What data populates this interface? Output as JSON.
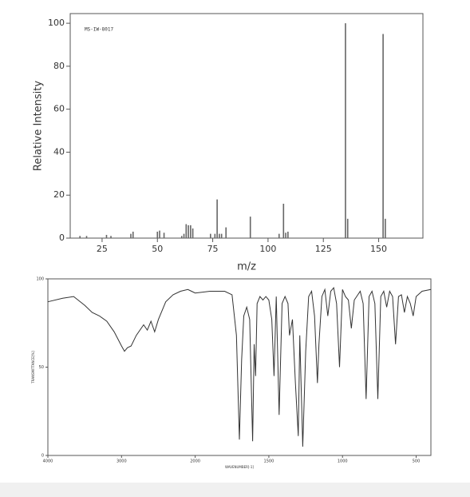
{
  "chart_data": [
    {
      "type": "bar",
      "annotation": "MS-IW-8017",
      "xlabel": "m/z",
      "ylabel": "Relative Intensity",
      "x": [
        15,
        18,
        27,
        29,
        38,
        39,
        50,
        51,
        53,
        61,
        62,
        63,
        64,
        65,
        66,
        74,
        76,
        77,
        78,
        79,
        81,
        92,
        105,
        107,
        108,
        109,
        135,
        136,
        152,
        153
      ],
      "values": [
        1,
        1,
        1.5,
        1,
        2,
        3,
        3,
        3.5,
        2.5,
        1,
        2,
        6.5,
        6,
        6,
        4.5,
        2,
        2,
        18,
        2,
        2,
        5,
        10,
        2,
        16,
        2.5,
        3,
        100,
        9,
        95,
        9
      ],
      "color": "#666666",
      "xlim": [
        10.6,
        170
      ],
      "ylim": [
        0,
        104.5
      ],
      "xticks": [
        25,
        50,
        75,
        100,
        125,
        150
      ],
      "yticks": [
        0,
        20,
        40,
        60,
        80,
        100
      ]
    },
    {
      "type": "line",
      "xlabel": "WAVENUMBER[-1]",
      "ylabel": "TRANSMITTANCE[%]",
      "xscale": "piecewise",
      "color": "#333333",
      "x": [
        4000,
        3800,
        3650,
        3500,
        3400,
        3300,
        3200,
        3100,
        3050,
        3000,
        2960,
        2920,
        2870,
        2800,
        2700,
        2650,
        2600,
        2550,
        2500,
        2400,
        2300,
        2200,
        2100,
        2050,
        2000,
        1900,
        1850,
        1800,
        1750,
        1720,
        1700,
        1685,
        1670,
        1650,
        1630,
        1610,
        1600,
        1590,
        1580,
        1560,
        1540,
        1520,
        1500,
        1480,
        1465,
        1450,
        1430,
        1410,
        1390,
        1370,
        1360,
        1340,
        1320,
        1300,
        1290,
        1270,
        1250,
        1230,
        1210,
        1190,
        1170,
        1160,
        1140,
        1120,
        1100,
        1080,
        1060,
        1040,
        1020,
        1000,
        980,
        960,
        940,
        920,
        880,
        860,
        840,
        820,
        800,
        780,
        760,
        740,
        720,
        700,
        680,
        660,
        640,
        620,
        600,
        580,
        560,
        540,
        520,
        500,
        460,
        400
      ],
      "values": [
        87,
        89,
        90,
        85,
        81,
        79,
        76,
        70,
        66,
        62,
        59,
        61,
        62,
        68,
        74,
        71,
        76,
        70,
        77,
        87,
        91,
        93,
        94,
        93,
        92,
        93,
        93,
        93,
        91,
        68,
        9,
        54,
        79,
        84,
        77,
        8,
        63,
        45,
        86,
        90,
        88,
        90,
        88,
        77,
        45,
        90,
        23,
        86,
        90,
        86,
        68,
        77,
        41,
        11,
        68,
        5,
        59,
        90,
        93,
        79,
        41,
        63,
        90,
        94,
        79,
        93,
        95,
        86,
        50,
        94,
        90,
        88,
        72,
        88,
        93,
        86,
        32,
        90,
        93,
        86,
        32,
        90,
        93,
        84,
        93,
        90,
        63,
        90,
        91,
        81,
        90,
        86,
        79,
        90,
        93,
        94
      ],
      "xlim": [
        4000,
        400
      ],
      "ylim": [
        0,
        100
      ],
      "xticks": [
        4000,
        3000,
        2000,
        1500,
        1000,
        500
      ],
      "yticks": [
        0,
        50,
        100
      ]
    }
  ]
}
